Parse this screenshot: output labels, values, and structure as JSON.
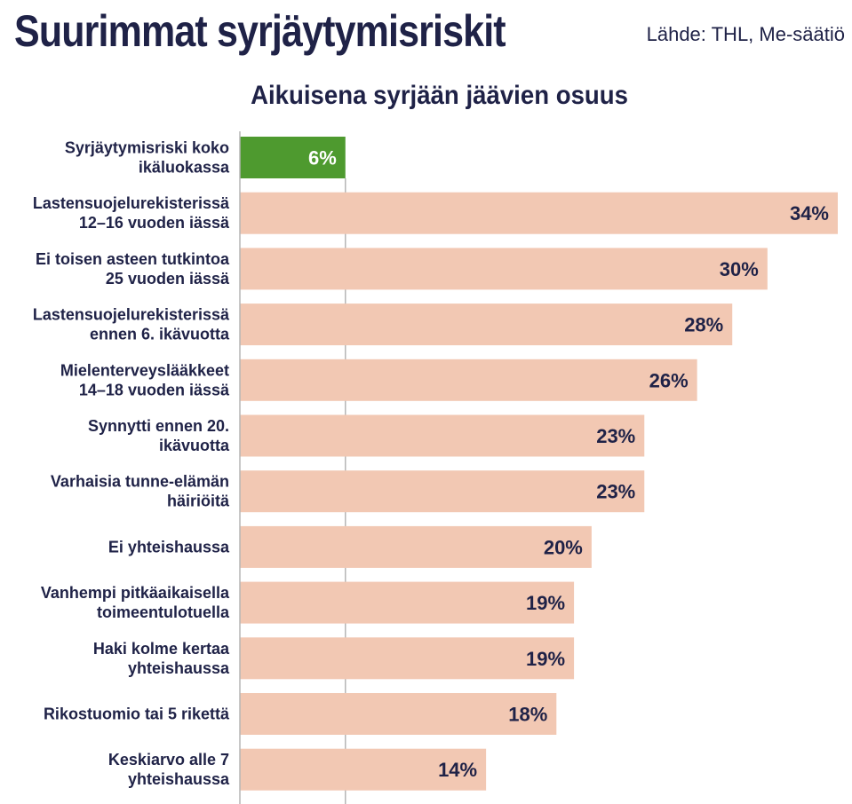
{
  "header": {
    "title": "Suurimmat syrjäytymisriskit",
    "source": "Lähde: THL, Me-säätiö"
  },
  "chart_data": {
    "type": "bar",
    "orientation": "horizontal",
    "title": "Aikuisena syrjään jäävien osuus",
    "categories": [
      [
        "Syrjäytymisriski koko",
        "ikäluokassa"
      ],
      [
        "Lastensuojelurekisterissä",
        "12–16 vuoden iässä"
      ],
      [
        "Ei toisen asteen tutkintoa",
        "25 vuoden iässä"
      ],
      [
        "Lastensuojelurekisterissä",
        "ennen 6. ikävuotta"
      ],
      [
        "Mielenterveyslääkkeet",
        "14–18 vuoden iässä"
      ],
      [
        "Synnytti ennen 20.",
        "ikävuotta"
      ],
      [
        "Varhaisia tunne-elämän",
        "häiriöitä"
      ],
      [
        "Ei yhteishaussa"
      ],
      [
        "Vanhempi pitkäaikaisella",
        "toimeentulotuella"
      ],
      [
        "Haki kolme kertaa",
        "yhteishaussa"
      ],
      [
        "Rikostuomio tai 5 rikettä"
      ],
      [
        "Keskiarvo alle 7",
        "yhteishaussa"
      ]
    ],
    "values": [
      6,
      34,
      30,
      28,
      26,
      23,
      23,
      20,
      19,
      19,
      18,
      14
    ],
    "value_labels": [
      "6%",
      "34%",
      "30%",
      "28%",
      "26%",
      "23%",
      "23%",
      "20%",
      "19%",
      "19%",
      "18%",
      "14%"
    ],
    "xlim": [
      0,
      34
    ],
    "reference_line_value": 6,
    "colors": {
      "baseline_bar": "#4e9a2f",
      "bar": "#f2c8b3",
      "baseline_label": "#ffffff",
      "label": "#1f2247",
      "axis": "#b5b5b5"
    }
  }
}
